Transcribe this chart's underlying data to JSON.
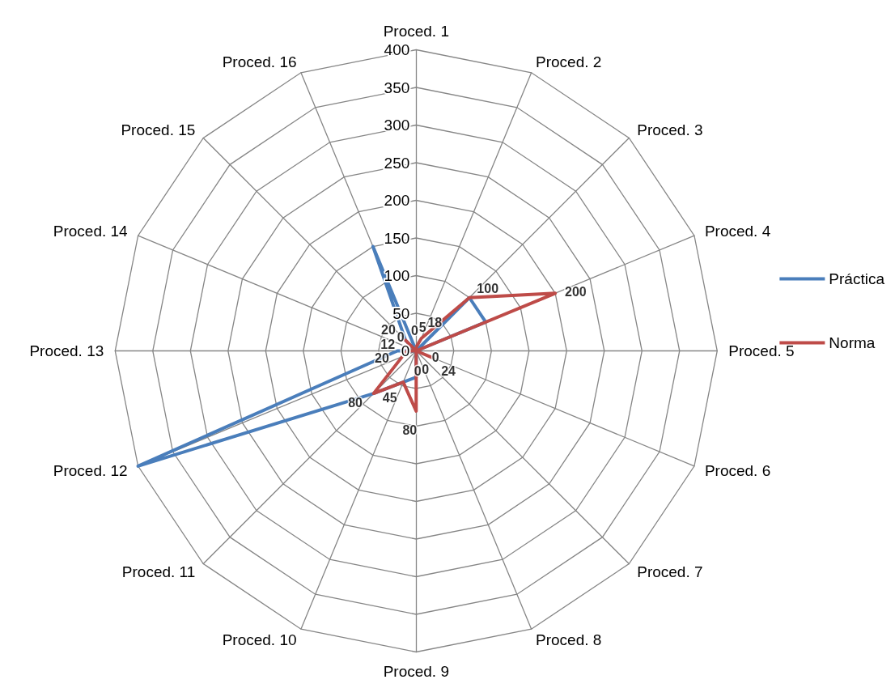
{
  "chart_data": {
    "type": "radar",
    "categories": [
      "Proced. 1",
      "Proced. 2",
      "Proced. 3",
      "Proced. 4",
      "Proced. 5",
      "Proced. 6",
      "Proced. 7",
      "Proced. 8",
      "Proced. 9",
      "Proced. 10",
      "Proced. 11",
      "Proced. 12",
      "Proced. 13",
      "Proced. 14",
      "Proced. 15",
      "Proced. 16"
    ],
    "series": [
      {
        "name": "Práctica",
        "color": "#4a7ebb",
        "values": [
          0,
          0,
          100,
          100,
          0,
          0,
          0,
          0,
          35,
          45,
          80,
          400,
          25,
          0,
          20,
          150
        ]
      },
      {
        "name": "Norma",
        "color": "#be4b48",
        "values": [
          5,
          18,
          100,
          200,
          0,
          24,
          0,
          0,
          80,
          45,
          80,
          20,
          12,
          0,
          20,
          0
        ],
        "value_labels": [
          "5",
          "18",
          "100",
          "200",
          "0",
          "24",
          "0",
          "0",
          "80",
          "45",
          "80",
          "20",
          "12",
          "0",
          "20",
          "0"
        ]
      }
    ],
    "ylim": [
      0,
      400
    ],
    "yticks": [
      0,
      50,
      100,
      150,
      200,
      250,
      300,
      350,
      400
    ],
    "grid": true,
    "legend": "right",
    "marker": "none"
  }
}
